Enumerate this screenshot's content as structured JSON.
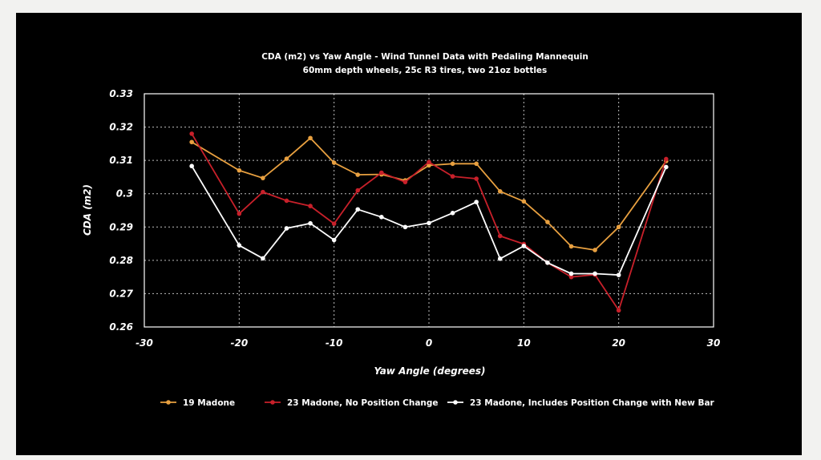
{
  "chart_data": {
    "type": "line",
    "title": "CDA (m2) vs Yaw Angle - Wind Tunnel Data with Pedaling Mannequin",
    "subtitle": "60mm depth wheels, 25c R3 tires, two 21oz bottles",
    "xlabel": "Yaw Angle (degrees)",
    "ylabel": "CDA (m2)",
    "xlim": [
      -30,
      30
    ],
    "ylim": [
      0.26,
      0.33
    ],
    "x_ticks": [
      "-30",
      "-20",
      "-10",
      "0",
      "10",
      "20",
      "30"
    ],
    "y_ticks": [
      "0.33",
      "0.32",
      "0.31",
      "0.3",
      "0.29",
      "0.28",
      "0.27",
      "0.26"
    ],
    "grid": "dotted, both axes",
    "legend_position": "bottom",
    "x": [
      -25,
      -20,
      -17.5,
      -15,
      -12.5,
      -10,
      -7.5,
      -5,
      -2.5,
      0,
      2.5,
      5,
      7.5,
      10,
      12.5,
      15,
      17.5,
      20,
      25
    ],
    "series": [
      {
        "name": "19 Madone",
        "color": "#e8a040",
        "values": [
          0.3155,
          0.307,
          0.3047,
          0.3105,
          0.3167,
          0.3093,
          0.3057,
          0.3058,
          0.304,
          0.3085,
          0.309,
          0.309,
          0.3007,
          0.2977,
          0.2915,
          0.2842,
          0.2831,
          0.29,
          0.3098
        ]
      },
      {
        "name": "23 Madone, No Position Change",
        "color": "#c8202a",
        "values": [
          0.318,
          0.294,
          0.3005,
          0.2979,
          0.2963,
          0.291,
          0.301,
          0.3063,
          0.3035,
          0.3095,
          0.3052,
          0.3045,
          0.2873,
          0.2849,
          0.2793,
          0.275,
          0.2757,
          0.265,
          0.3104
        ]
      },
      {
        "name": "23 Madone, Includes Position Change with New Bar",
        "color": "#ffffff",
        "values": [
          0.3083,
          0.2845,
          0.2806,
          0.2896,
          0.2911,
          0.2861,
          0.2953,
          0.293,
          0.29,
          0.2912,
          0.2942,
          0.2975,
          0.2805,
          0.2843,
          0.2793,
          0.276,
          0.276,
          0.2756,
          0.308
        ]
      }
    ]
  }
}
